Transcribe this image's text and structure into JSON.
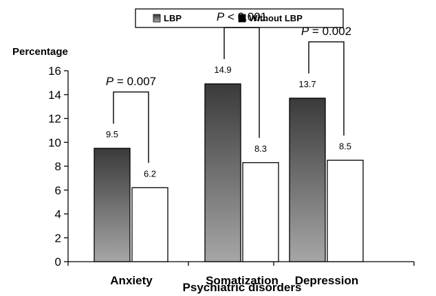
{
  "chart_data": {
    "type": "bar",
    "title": "",
    "ylabel": "Percentage",
    "xlabel": "Psychiatric disorders",
    "ylim": [
      0,
      16
    ],
    "yticks": [
      0,
      2,
      4,
      6,
      8,
      10,
      12,
      14,
      16
    ],
    "grid": false,
    "legend_position": "top",
    "categories": [
      "Anxiety",
      "Somatization",
      "Depression"
    ],
    "series": [
      {
        "name": "LBP",
        "values": [
          9.5,
          14.9,
          13.7
        ],
        "fill": "gradient",
        "color_top": "#3a3a3a",
        "color_bottom": "#a6a6a6"
      },
      {
        "name": "Without LBP",
        "values": [
          6.2,
          8.3,
          8.5
        ],
        "fill": "solid",
        "color": "#ffffff"
      }
    ],
    "data_labels": [
      [
        "9.5",
        "14.9",
        "13.7"
      ],
      [
        "6.2",
        "8.3",
        "8.5"
      ]
    ],
    "p_values": [
      {
        "italic": "P",
        "rest": " = 0.007"
      },
      {
        "italic": "P",
        "rest": " < 0.001"
      },
      {
        "italic": "P",
        "rest": " = 0.002"
      }
    ]
  }
}
